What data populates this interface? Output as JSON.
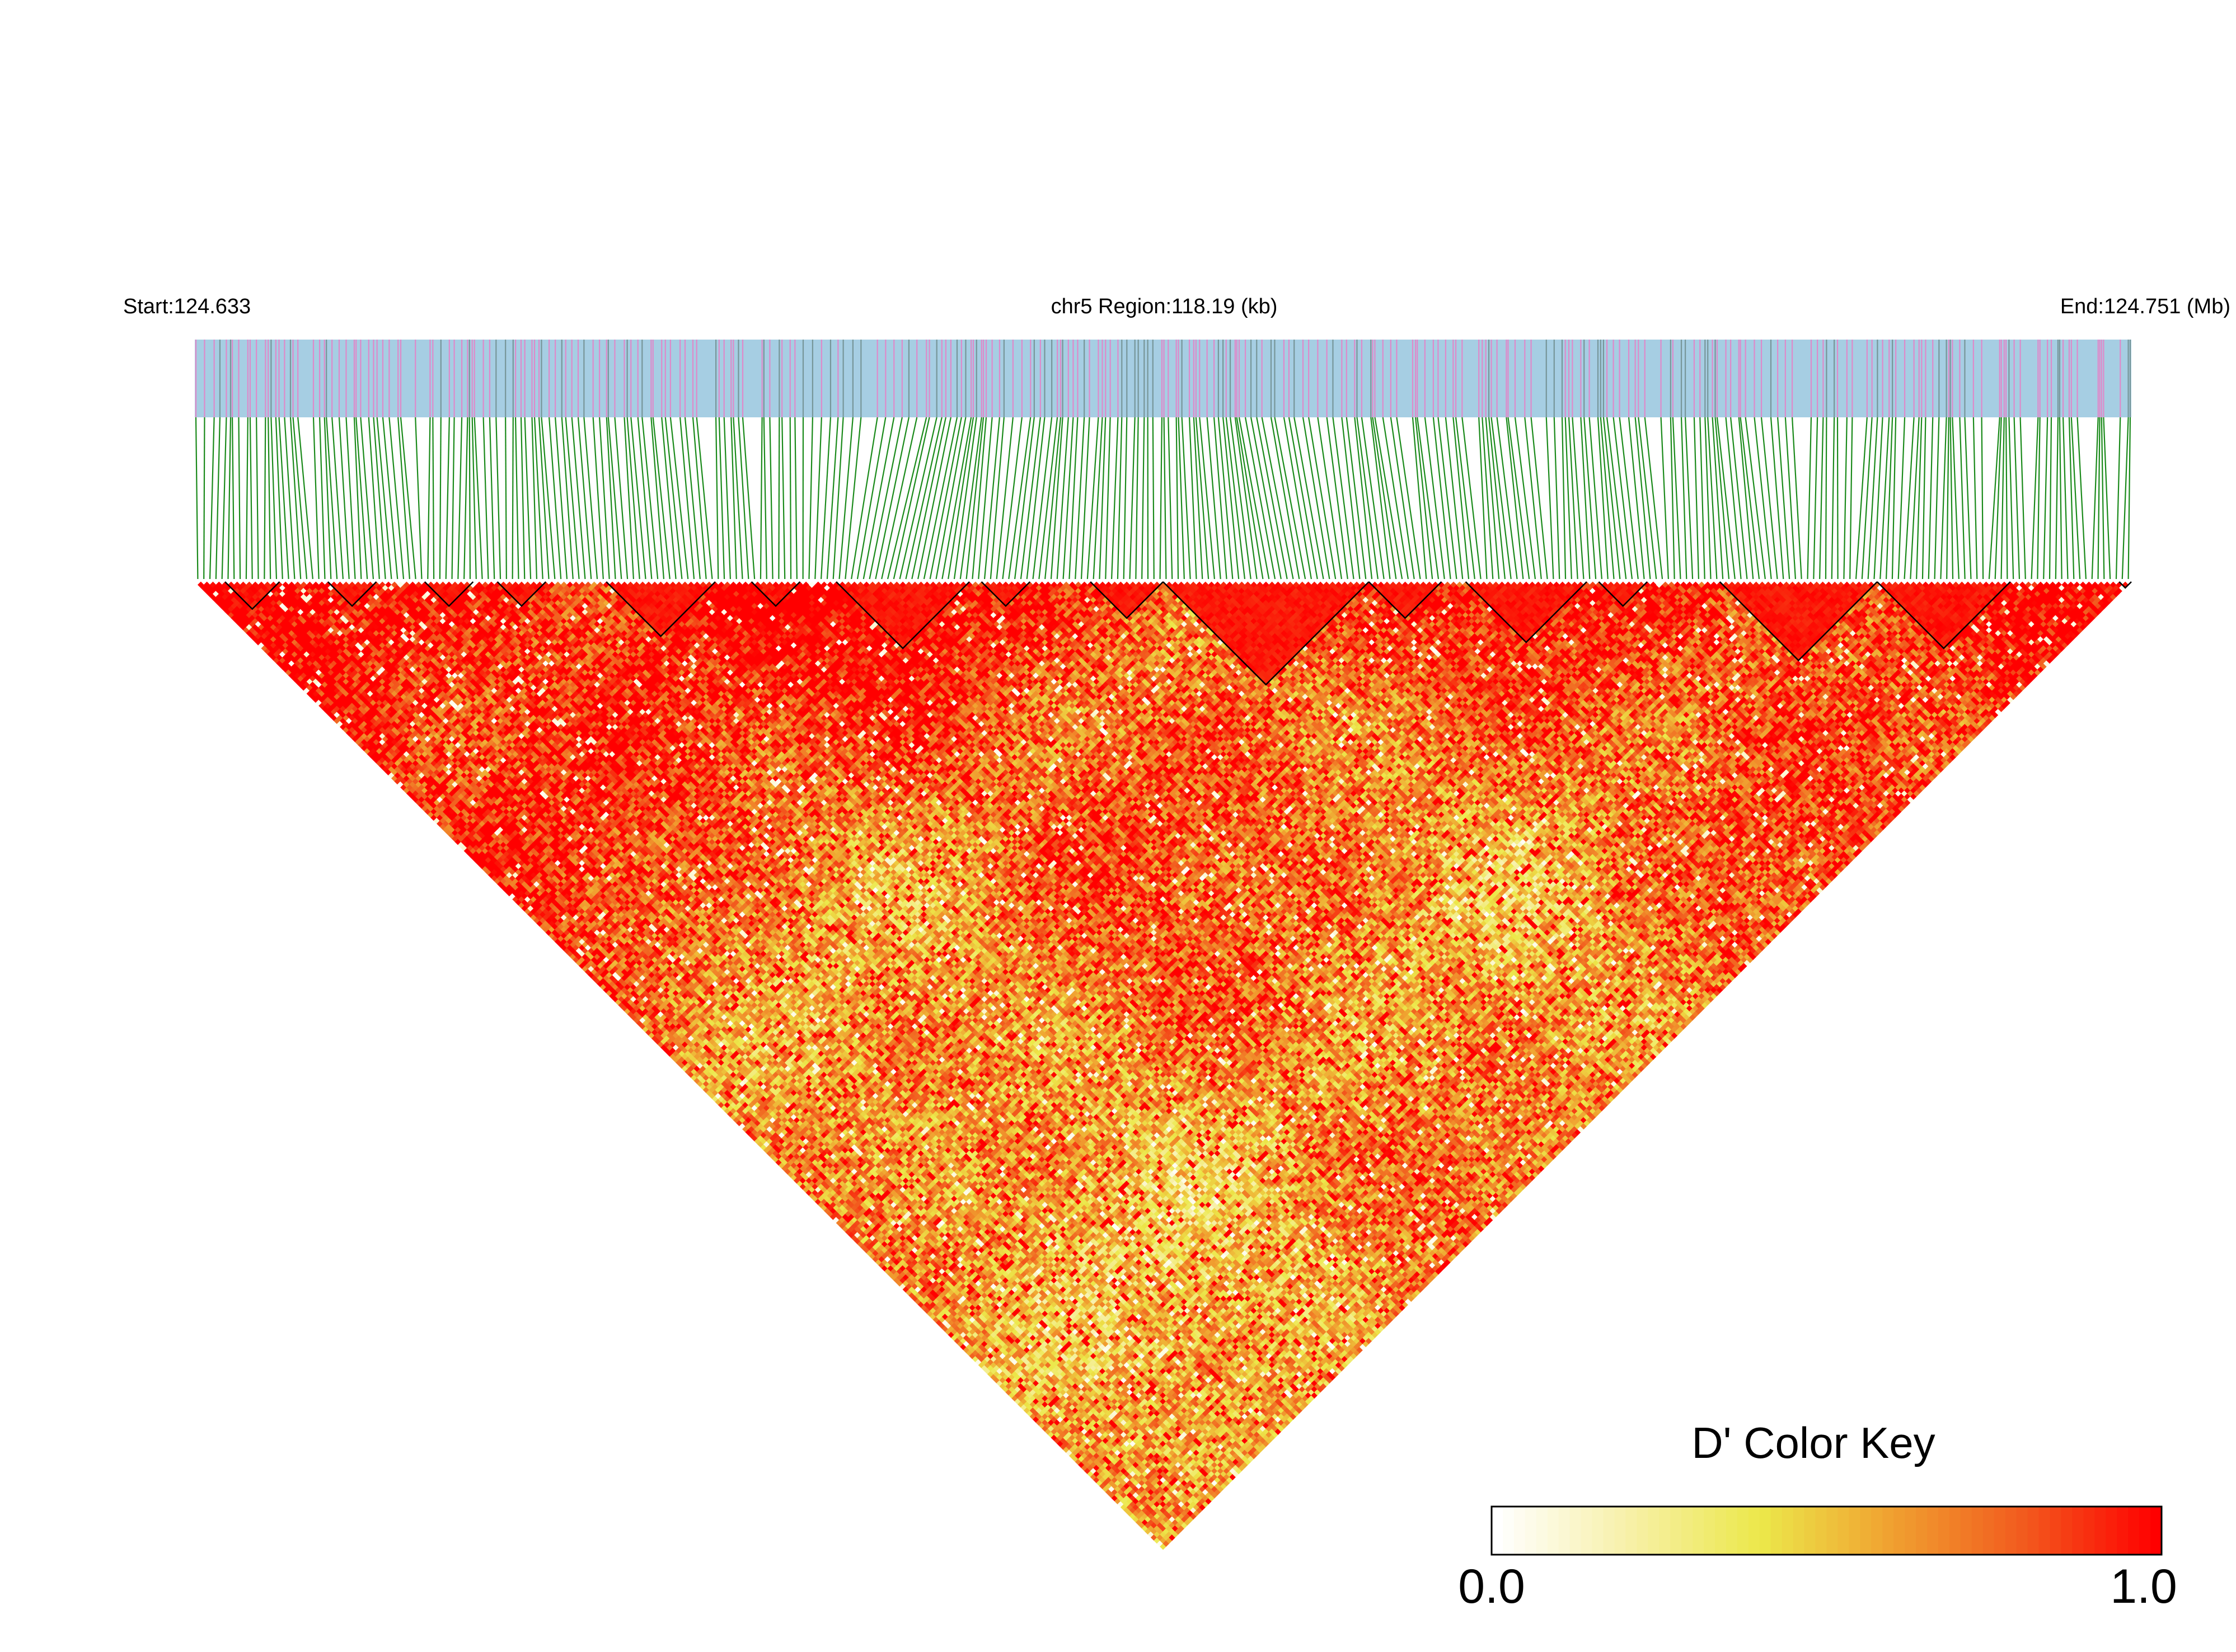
{
  "chart_data": {
    "type": "heatmap",
    "subtype": "linkage-disequilibrium-triangle",
    "chromosome": "chr5",
    "start_label": "Start:124.633",
    "region_label": "chr5 Region:118.19 (kb)",
    "end_label": "End:124.751 (Mb)",
    "region_start_mb": 124.633,
    "region_end_mb": 124.751,
    "region_length_kb": 118.19,
    "metric": "D'",
    "color_key": {
      "title": "D' Color Key",
      "min": 0.0,
      "max": 1.0,
      "min_label": "0.0",
      "max_label": "1.0",
      "stops": [
        "#ffffff",
        "#f7f0a8",
        "#ece84a",
        "#f0a030",
        "#f25a1e",
        "#ff0000"
      ]
    },
    "colors": {
      "track_background": "#a6cee3",
      "snp_marker_pink": "#e77ec6",
      "snp_marker_gray": "#6f8c8c",
      "connector_lines": "#1a8a1a",
      "block_outline": "#000000"
    },
    "snp_count": 320,
    "ld_blocks_snp_ranges": [
      [
        5,
        14
      ],
      [
        22,
        30
      ],
      [
        38,
        46
      ],
      [
        50,
        58
      ],
      [
        68,
        86
      ],
      [
        92,
        100
      ],
      [
        106,
        128
      ],
      [
        130,
        138
      ],
      [
        148,
        160
      ],
      [
        160,
        194
      ],
      [
        194,
        206
      ],
      [
        210,
        230
      ],
      [
        232,
        240
      ],
      [
        252,
        278
      ],
      [
        278,
        300
      ],
      [
        318,
        320
      ]
    ]
  }
}
